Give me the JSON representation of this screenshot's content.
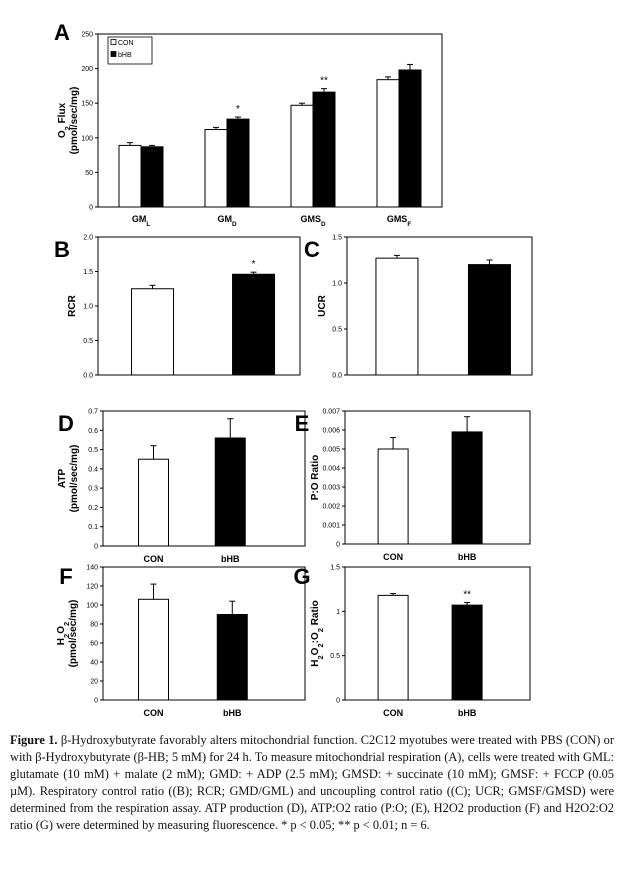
{
  "legend": {
    "items": [
      "CON",
      "bHB"
    ]
  },
  "panels": {
    "A": {
      "letter": "A"
    },
    "B": {
      "letter": "B"
    },
    "C": {
      "letter": "C"
    },
    "D": {
      "letter": "D"
    },
    "E": {
      "letter": "E"
    },
    "F": {
      "letter": "F"
    },
    "G": {
      "letter": "G"
    }
  },
  "caption": {
    "label": "Figure 1.",
    "text": "β-Hydroxybutyrate favorably alters mitochondrial function. C2C12 myotubes were treated with PBS (CON) or with β-Hydroxybutyrate (β-HB; 5 mM) for 24 h. To measure mitochondrial respiration (A), cells were treated with GML: glutamate (10 mM) + malate (2 mM); GMD: + ADP (2.5 mM); GMSD: + succinate (10 mM); GMSF: + FCCP (0.05 µM). Respiratory control ratio ((B); RCR; GMD/GML) and uncoupling control ratio ((C); UCR; GMSF/GMSD) were determined from the respiration assay. ATP production (D), ATP:O2 ratio (P:O; (E), H2O2 production (F) and H2O2:O2 ratio (G) were determined by measuring fluorescence. * p < 0.05; ** p < 0.01; n = 6."
  },
  "colors": {
    "con": "#ffffff",
    "bhb": "#000000",
    "axis": "#000000"
  },
  "chart_data": [
    {
      "id": "A",
      "type": "bar",
      "ylabel": "O2 Flux (pmol/sec/mg)",
      "ylim": [
        0,
        250
      ],
      "yticks": [
        "0",
        "50",
        "100",
        "150",
        "200",
        "250"
      ],
      "categories": [
        "GML",
        "GMD",
        "GMSD",
        "GMSF"
      ],
      "category_labels": [
        [
          "GM",
          "L"
        ],
        [
          "GM",
          "D"
        ],
        [
          "GMS",
          "D"
        ],
        [
          "GMS",
          "F"
        ]
      ],
      "series": [
        {
          "name": "CON",
          "values": [
            89,
            112,
            147,
            184
          ],
          "errors": [
            4,
            3,
            3,
            4
          ]
        },
        {
          "name": "bHB",
          "values": [
            87,
            127,
            166,
            198
          ],
          "errors": [
            2,
            3,
            5,
            8
          ]
        }
      ],
      "annotations": [
        {
          "category": 1,
          "series": 1,
          "text": "*"
        },
        {
          "category": 2,
          "series": 1,
          "text": "**"
        }
      ],
      "legend": "top-left"
    },
    {
      "id": "B",
      "type": "bar",
      "ylabel": "RCR",
      "ylim": [
        0,
        2.0
      ],
      "yticks": [
        "0.0",
        "0.5",
        "1.0",
        "1.5",
        "2.0"
      ],
      "categories": [
        "CON",
        "bHB"
      ],
      "show_categories": false,
      "values": [
        1.25,
        1.46
      ],
      "errors": [
        0.05,
        0.03
      ],
      "annotations": [
        {
          "category": 1,
          "text": "*"
        }
      ]
    },
    {
      "id": "C",
      "type": "bar",
      "ylabel": "UCR",
      "ylim": [
        0,
        1.5
      ],
      "yticks": [
        "0.0",
        "0.5",
        "1.0",
        "1.5"
      ],
      "categories": [
        "CON",
        "bHB"
      ],
      "show_categories": false,
      "values": [
        1.27,
        1.2
      ],
      "errors": [
        0.03,
        0.05
      ],
      "annotations": []
    },
    {
      "id": "D",
      "type": "bar",
      "ylabel": "ATP (pmol/sec/mg)",
      "ylim": [
        0,
        0.7
      ],
      "yticks": [
        "0",
        "0.1",
        "0.2",
        "0.3",
        "0.4",
        "0.5",
        "0.6",
        "0.7"
      ],
      "categories": [
        "CON",
        "bHB"
      ],
      "show_categories": true,
      "values": [
        0.45,
        0.56
      ],
      "errors": [
        0.07,
        0.1
      ],
      "annotations": []
    },
    {
      "id": "E",
      "type": "bar",
      "ylabel": "P:O Ratio",
      "ylim": [
        0,
        0.007
      ],
      "yticks": [
        "0",
        "0.001",
        "0.002",
        "0.003",
        "0.004",
        "0.005",
        "0.006",
        "0.007"
      ],
      "categories": [
        "CON",
        "bHB"
      ],
      "show_categories": true,
      "values": [
        0.005,
        0.0059
      ],
      "errors": [
        0.0006,
        0.0008
      ],
      "annotations": []
    },
    {
      "id": "F",
      "type": "bar",
      "ylabel": "H2O2 (pmol/sec/mg)",
      "ylim": [
        0,
        140
      ],
      "yticks": [
        "0",
        "20",
        "40",
        "60",
        "80",
        "100",
        "120",
        "140"
      ],
      "categories": [
        "CON",
        "bHB"
      ],
      "show_categories": true,
      "values": [
        106,
        90
      ],
      "errors": [
        16,
        14
      ],
      "annotations": []
    },
    {
      "id": "G",
      "type": "bar",
      "ylabel": "H2O2:O2 Ratio",
      "ylim": [
        0,
        1.5
      ],
      "yticks": [
        "0",
        "0.5",
        "1",
        "1.5"
      ],
      "categories": [
        "CON",
        "bHB"
      ],
      "show_categories": true,
      "values": [
        1.18,
        1.07
      ],
      "errors": [
        0.02,
        0.03
      ],
      "annotations": [
        {
          "category": 1,
          "text": "**"
        }
      ]
    }
  ]
}
